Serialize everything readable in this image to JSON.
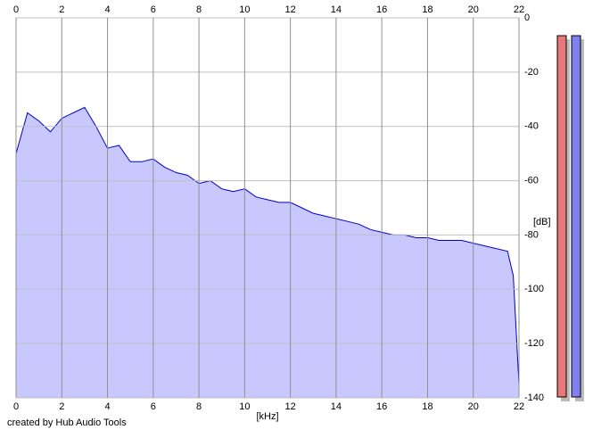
{
  "chart_data": {
    "type": "area",
    "x_label": "[kHz]",
    "y_label": "[dB]",
    "footer": "created by Hub Audio Tools",
    "x": [
      0,
      0.5,
      1,
      1.5,
      2,
      2.5,
      3,
      3.5,
      4,
      4.5,
      5,
      5.5,
      6,
      6.5,
      7,
      7.5,
      8,
      8.5,
      9,
      9.5,
      10,
      10.5,
      11,
      11.5,
      12,
      12.5,
      13,
      13.5,
      14,
      14.5,
      15,
      15.5,
      16,
      16.5,
      17,
      17.5,
      18,
      18.5,
      19,
      19.5,
      20,
      20.5,
      21,
      21.5,
      21.75,
      22
    ],
    "values": [
      -50,
      -35,
      -38,
      -42,
      -37,
      -35,
      -33,
      -40,
      -48,
      -47,
      -53,
      -53,
      -52,
      -55,
      -57,
      -58,
      -61,
      -60,
      -63,
      -64,
      -63,
      -66,
      -67,
      -68,
      -68,
      -70,
      -72,
      -73,
      -74,
      -75,
      -76,
      -78,
      -79,
      -80,
      -80,
      -81,
      -81,
      -82,
      -82,
      -82,
      -83,
      -84,
      -85,
      -86,
      -95,
      -135
    ],
    "color": "#0000cc",
    "fill_color": "#c8c8ff",
    "xlim": [
      0,
      22
    ],
    "xticks": [
      0,
      2,
      4,
      6,
      8,
      10,
      12,
      14,
      16,
      18,
      20,
      22
    ],
    "ylim": [
      -140,
      0
    ],
    "yticks": [
      0,
      -20,
      -40,
      -60,
      -80,
      -100,
      -120,
      -140
    ],
    "grid": true
  }
}
